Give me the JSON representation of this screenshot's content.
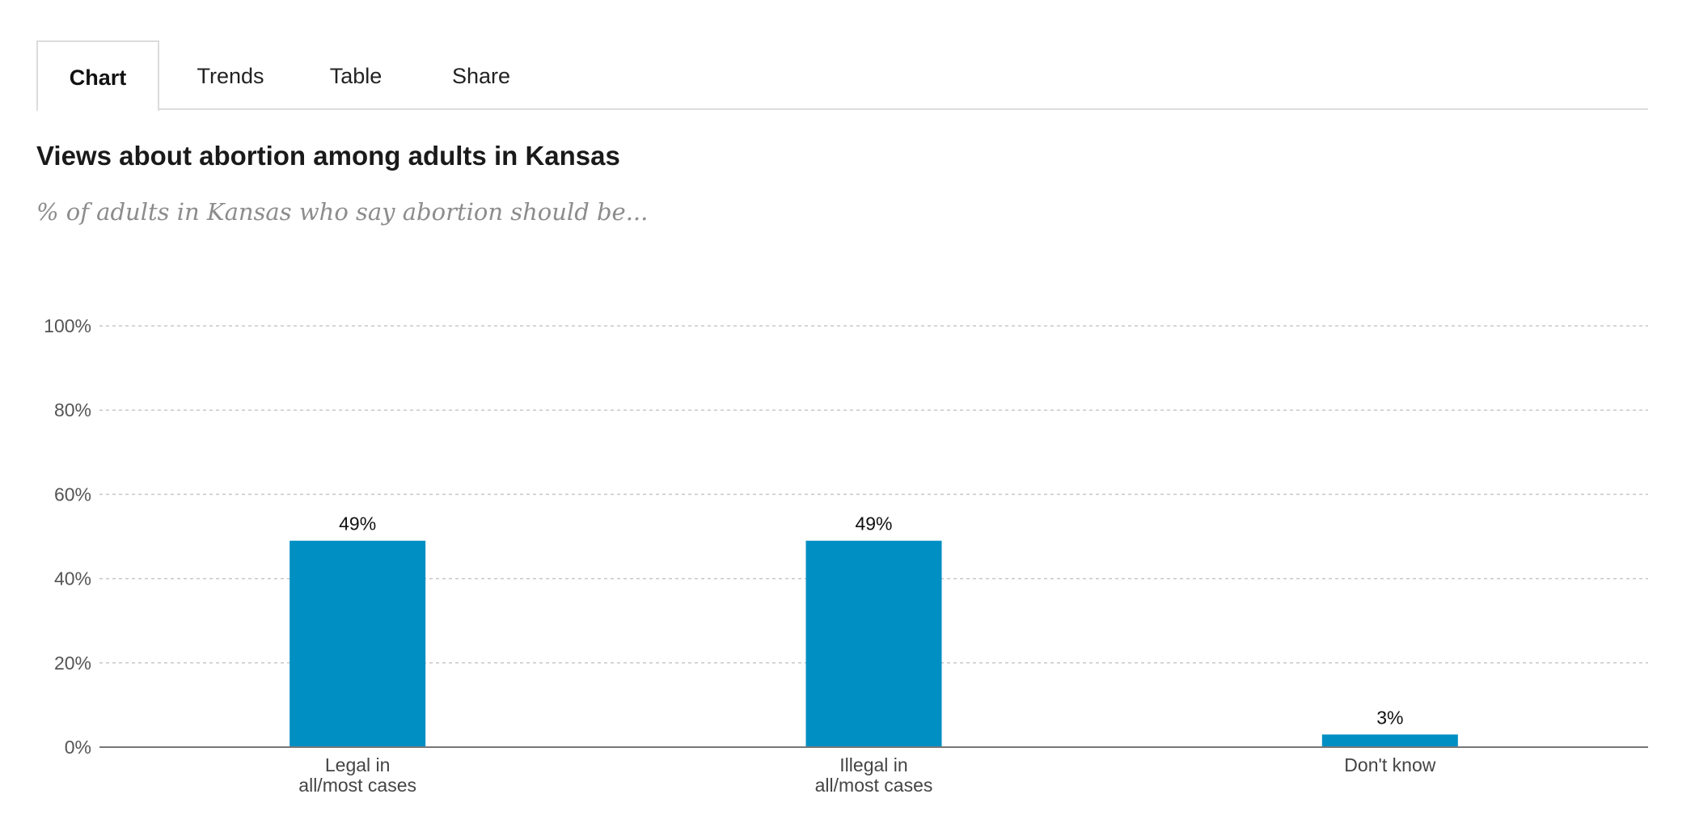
{
  "tabs": [
    {
      "label": "Chart",
      "active": true
    },
    {
      "label": "Trends",
      "active": false
    },
    {
      "label": "Table",
      "active": false
    },
    {
      "label": "Share",
      "active": false
    }
  ],
  "chart_data": {
    "type": "bar",
    "title": "Views about abortion among adults in Kansas",
    "subtitle": "% of adults in Kansas who say abortion should be...",
    "categories": [
      [
        "Legal in",
        "all/most cases"
      ],
      [
        "Illegal in",
        "all/most cases"
      ],
      [
        "Don't know"
      ]
    ],
    "values": [
      49,
      49,
      3
    ],
    "value_labels": [
      "49%",
      "49%",
      "3%"
    ],
    "y_ticks": [
      0,
      20,
      40,
      60,
      80,
      100
    ],
    "y_tick_labels": [
      "0%",
      "20%",
      "40%",
      "60%",
      "80%",
      "100%"
    ],
    "ylim": [
      0,
      100
    ],
    "xlabel": "",
    "ylabel": "",
    "grid": true,
    "bar_color": "#008fc3"
  }
}
